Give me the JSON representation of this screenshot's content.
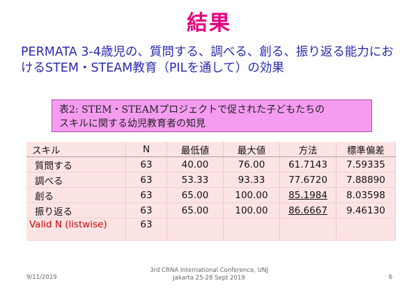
{
  "title": "結果",
  "subtitle": "PERMATA 3-4歳児の、質問する、調べる、創る、振り返る能力におけるSTEM・STEAM教育（PILを通して）の効果",
  "caption_line1": "表2:  STEM・STEAMプロジェクトで促された子どもたちの",
  "caption_line2": "スキルに関する幼児教育者の知見",
  "table": {
    "headers": [
      "スキル",
      "N",
      "最低値",
      "最大値",
      "方法",
      "標準偏差"
    ],
    "rows": [
      {
        "skill": "質問する",
        "n": "63",
        "min": "40.00",
        "max": "76.00",
        "mean": "61.7143",
        "sd": "7.59335"
      },
      {
        "skill": "調べる",
        "n": "63",
        "min": "53.33",
        "max": "93.33",
        "mean": "77.6720",
        "sd": "7.88890"
      },
      {
        "skill": "創る",
        "n": "63",
        "min": "65.00",
        "max": "100.00",
        "mean": "85.1984",
        "sd": "8.03598"
      },
      {
        "skill": "振り返る",
        "n": "63",
        "min": "65.00",
        "max": "100.00",
        "mean": "86.6667",
        "sd": "9.46130"
      }
    ],
    "valid_label": "Valid N (listwise)",
    "valid_n": "63"
  },
  "footer": {
    "date": "9/11/2019",
    "conference_line1": "3rd CRNA International Conference, UNJ",
    "conference_line2": "Jakarta 25-28 Sept 2019",
    "page": "6"
  }
}
